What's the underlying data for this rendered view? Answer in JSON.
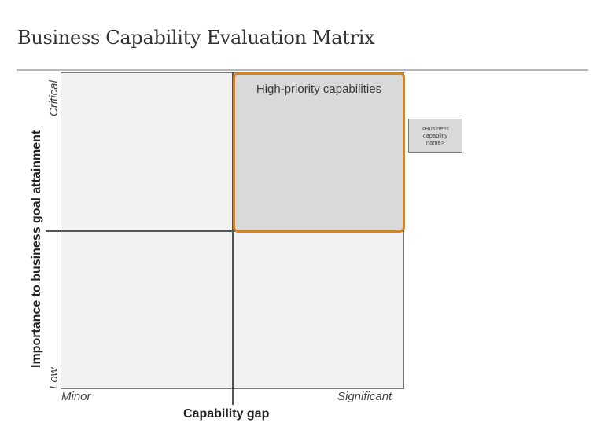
{
  "title": "Business Capability Evaluation Matrix",
  "matrix": {
    "x_axis": {
      "label": "Capability gap",
      "min_label": "Minor",
      "max_label": "Significant"
    },
    "y_axis": {
      "label": "Importance to business goal attainment",
      "min_label": "Low",
      "max_label": "Critical"
    },
    "highlight_quadrant": {
      "label": "High-priority capabilities",
      "position": "top-right",
      "border_color": "#d9841c",
      "fill_color": "#d9d9d9"
    },
    "quadrant_fill_color": "#f2f2f2"
  },
  "capability_card": {
    "line1": "<Business",
    "line2": "capability",
    "line3": "name>"
  }
}
